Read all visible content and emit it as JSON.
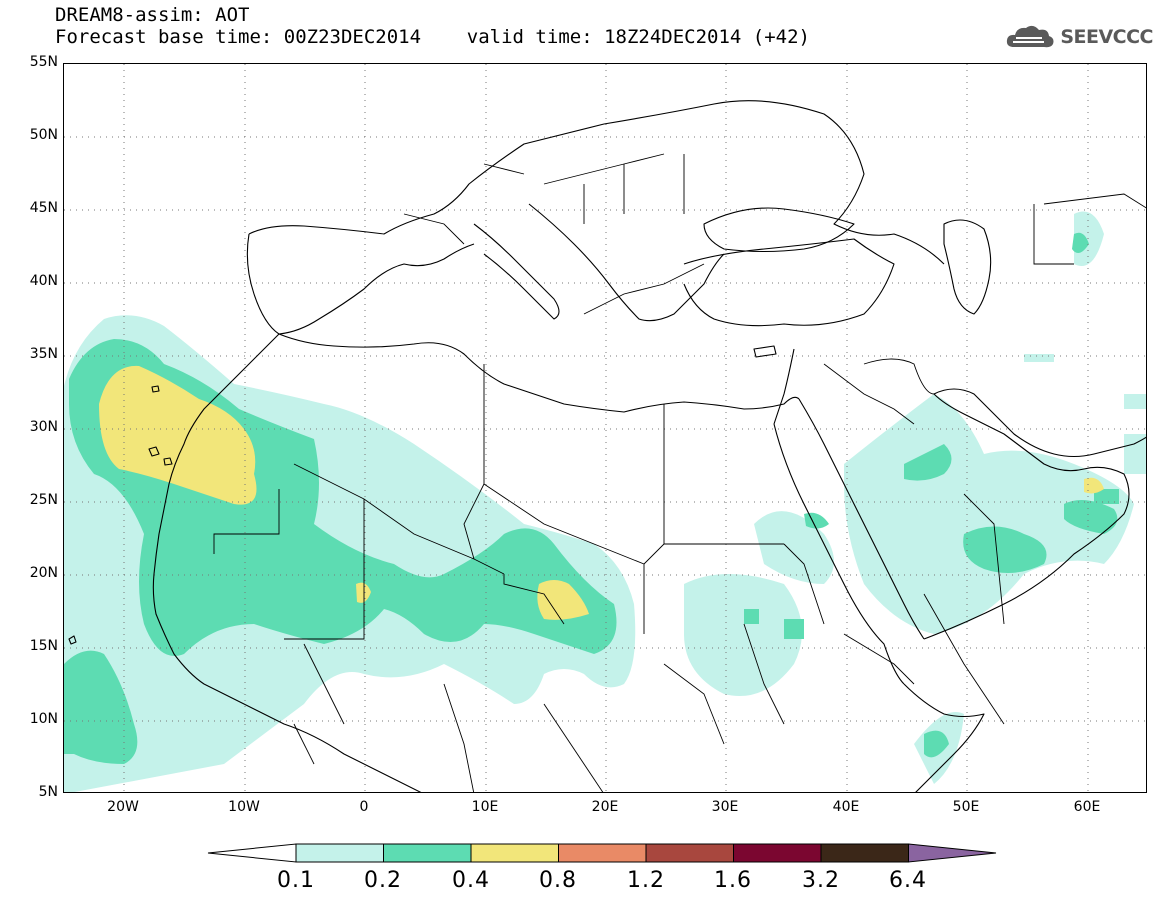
{
  "header": {
    "line1": "DREAM8-assim: AOT",
    "line2": "Forecast base time: 00Z23DEC2014    valid time: 18Z24DEC2014 (+42)"
  },
  "logo": {
    "text": "SEEVCCC",
    "icon": "cloud-icon"
  },
  "map": {
    "extent": {
      "lon": [
        -25,
        65
      ],
      "lat": [
        5,
        55
      ]
    },
    "lat_ticks": [
      "5N",
      "10N",
      "15N",
      "20N",
      "25N",
      "30N",
      "35N",
      "40N",
      "45N",
      "50N",
      "55N"
    ],
    "lon_ticks": [
      "20W",
      "10W",
      "0",
      "10E",
      "20E",
      "30E",
      "40E",
      "50E",
      "60E"
    ],
    "grid": "dotted",
    "coastline_color": "#000000"
  },
  "colorbar": {
    "labels": [
      "0.1",
      "0.2",
      "0.4",
      "0.8",
      "1.2",
      "1.6",
      "3.2",
      "6.4"
    ],
    "colors": [
      "#ffffff",
      "#c4f2ea",
      "#5ddcb2",
      "#f2e67a",
      "#e98a66",
      "#a8473e",
      "#7b0630",
      "#3b2718",
      "#8a64a0"
    ],
    "thresholds": [
      0.1,
      0.2,
      0.4,
      0.8,
      1.2,
      1.6,
      3.2,
      6.4
    ]
  }
}
